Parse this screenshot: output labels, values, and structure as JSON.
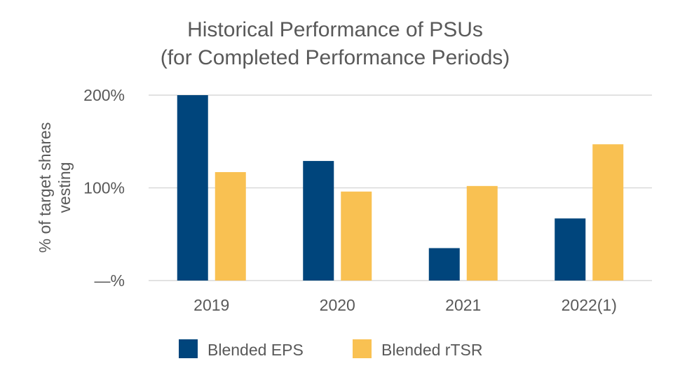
{
  "chart_data": {
    "type": "bar",
    "title_lines": [
      "Historical Performance of PSUs",
      "(for Completed Performance Periods)"
    ],
    "ylabel_lines": [
      "% of target shares",
      "vesting"
    ],
    "xlabel": "",
    "categories": [
      "2019",
      "2020",
      "2021",
      "2022(1)"
    ],
    "ylim": [
      0,
      200
    ],
    "yticks": [
      0,
      100,
      200
    ],
    "ytick_labels": [
      "—%",
      "100%",
      "200%"
    ],
    "grid": true,
    "legend_position": "bottom",
    "series": [
      {
        "name": "Blended EPS",
        "color": "#00457c",
        "values": [
          200,
          129,
          35,
          67
        ]
      },
      {
        "name": "Blended rTSR",
        "color": "#f9c152",
        "values": [
          117,
          96,
          102,
          147
        ]
      }
    ]
  }
}
